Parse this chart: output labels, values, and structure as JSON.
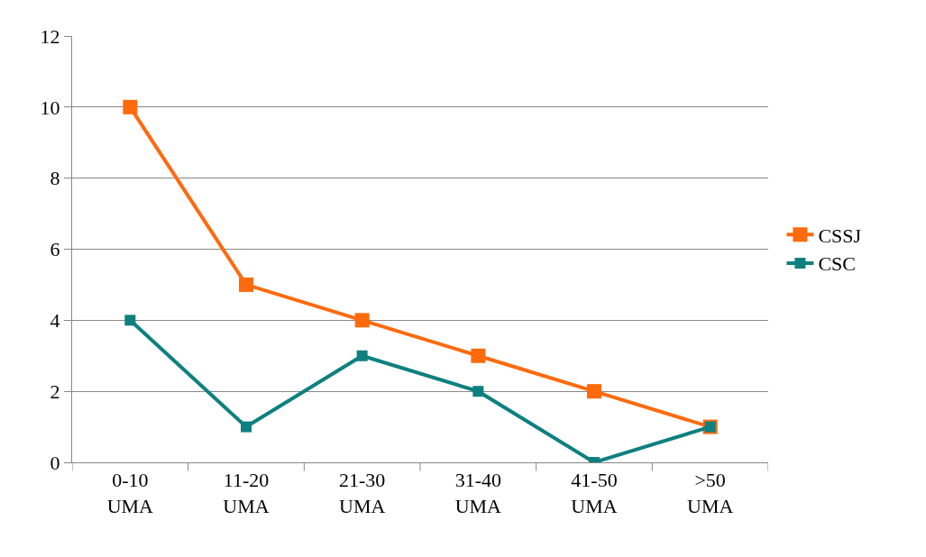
{
  "chart_data": {
    "type": "line",
    "categories": [
      "0-10 UMA",
      "11-20 UMA",
      "21-30 UMA",
      "31-40 UMA",
      "41-50 UMA",
      ">50 UMA"
    ],
    "series": [
      {
        "name": "CSSJ",
        "color": "#ff6a0d",
        "values": [
          10,
          5,
          4,
          3,
          2,
          1
        ]
      },
      {
        "name": "CSC",
        "color": "#0e8080",
        "values": [
          4,
          1,
          3,
          2,
          0,
          1
        ]
      }
    ],
    "ylim": [
      0,
      12
    ],
    "yticks": [
      0,
      2,
      4,
      6,
      8,
      10,
      12
    ],
    "grid": "y",
    "legend": "right",
    "marker": "square",
    "line_style": "solid"
  }
}
